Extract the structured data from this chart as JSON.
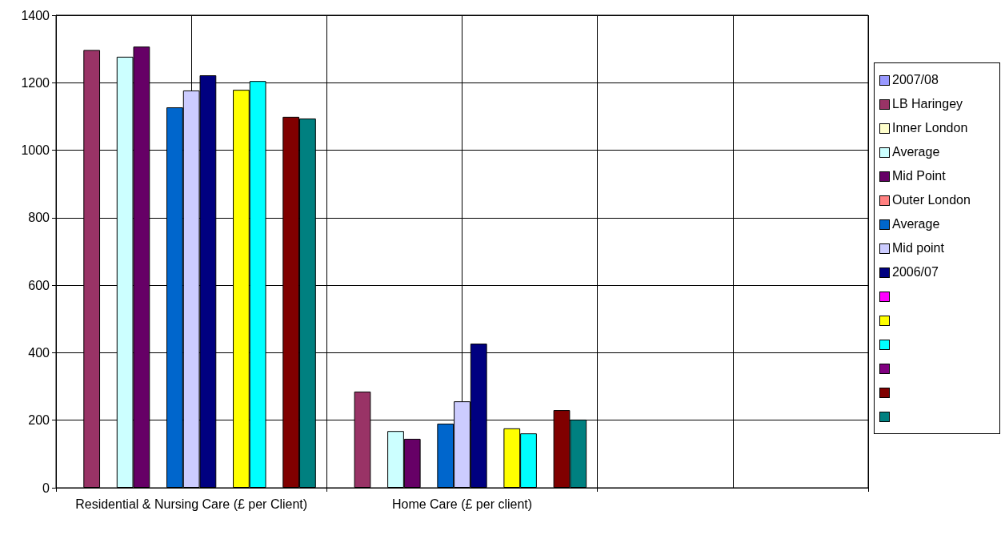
{
  "chart_data": {
    "type": "bar",
    "categories": [
      "Residential & Nursing Care (£ per Client)",
      "Home Care (£ per client)",
      null
    ],
    "ylim": [
      0,
      1400
    ],
    "yticks": [
      0,
      200,
      400,
      600,
      800,
      1000,
      1200,
      1400
    ],
    "grid": true,
    "legend": "right",
    "series": [
      {
        "name": "2007/08",
        "color": "#9999ff",
        "values": [
          null,
          null,
          null
        ]
      },
      {
        "name": "LB Haringey",
        "color": "#993366",
        "values": [
          1297,
          285,
          null
        ]
      },
      {
        "name": "Inner London",
        "color": "#ffffcc",
        "values": [
          null,
          null,
          null
        ]
      },
      {
        "name": "Average",
        "color": "#ccffff",
        "values": [
          1277,
          168,
          null
        ]
      },
      {
        "name": "Mid Point",
        "color": "#660066",
        "values": [
          1307,
          145,
          null
        ]
      },
      {
        "name": "Outer London",
        "color": "#ff8080",
        "values": [
          null,
          null,
          null
        ]
      },
      {
        "name": "Average",
        "color": "#0066cc",
        "values": [
          1127,
          190,
          null
        ]
      },
      {
        "name": "Mid point",
        "color": "#ccccff",
        "values": [
          1177,
          256,
          null
        ]
      },
      {
        "name": "2006/07",
        "color": "#000080",
        "values": [
          1222,
          427,
          null
        ]
      },
      {
        "color": "#ff00ff",
        "values": [
          null,
          null,
          null
        ]
      },
      {
        "color": "#ffff00",
        "values": [
          1179,
          176,
          null
        ]
      },
      {
        "color": "#00ffff",
        "values": [
          1205,
          161,
          null
        ]
      },
      {
        "color": "#800080",
        "values": [
          null,
          null,
          null
        ]
      },
      {
        "color": "#800000",
        "values": [
          1099,
          230,
          null
        ]
      },
      {
        "color": "#008080",
        "values": [
          1094,
          202,
          null
        ]
      }
    ]
  }
}
